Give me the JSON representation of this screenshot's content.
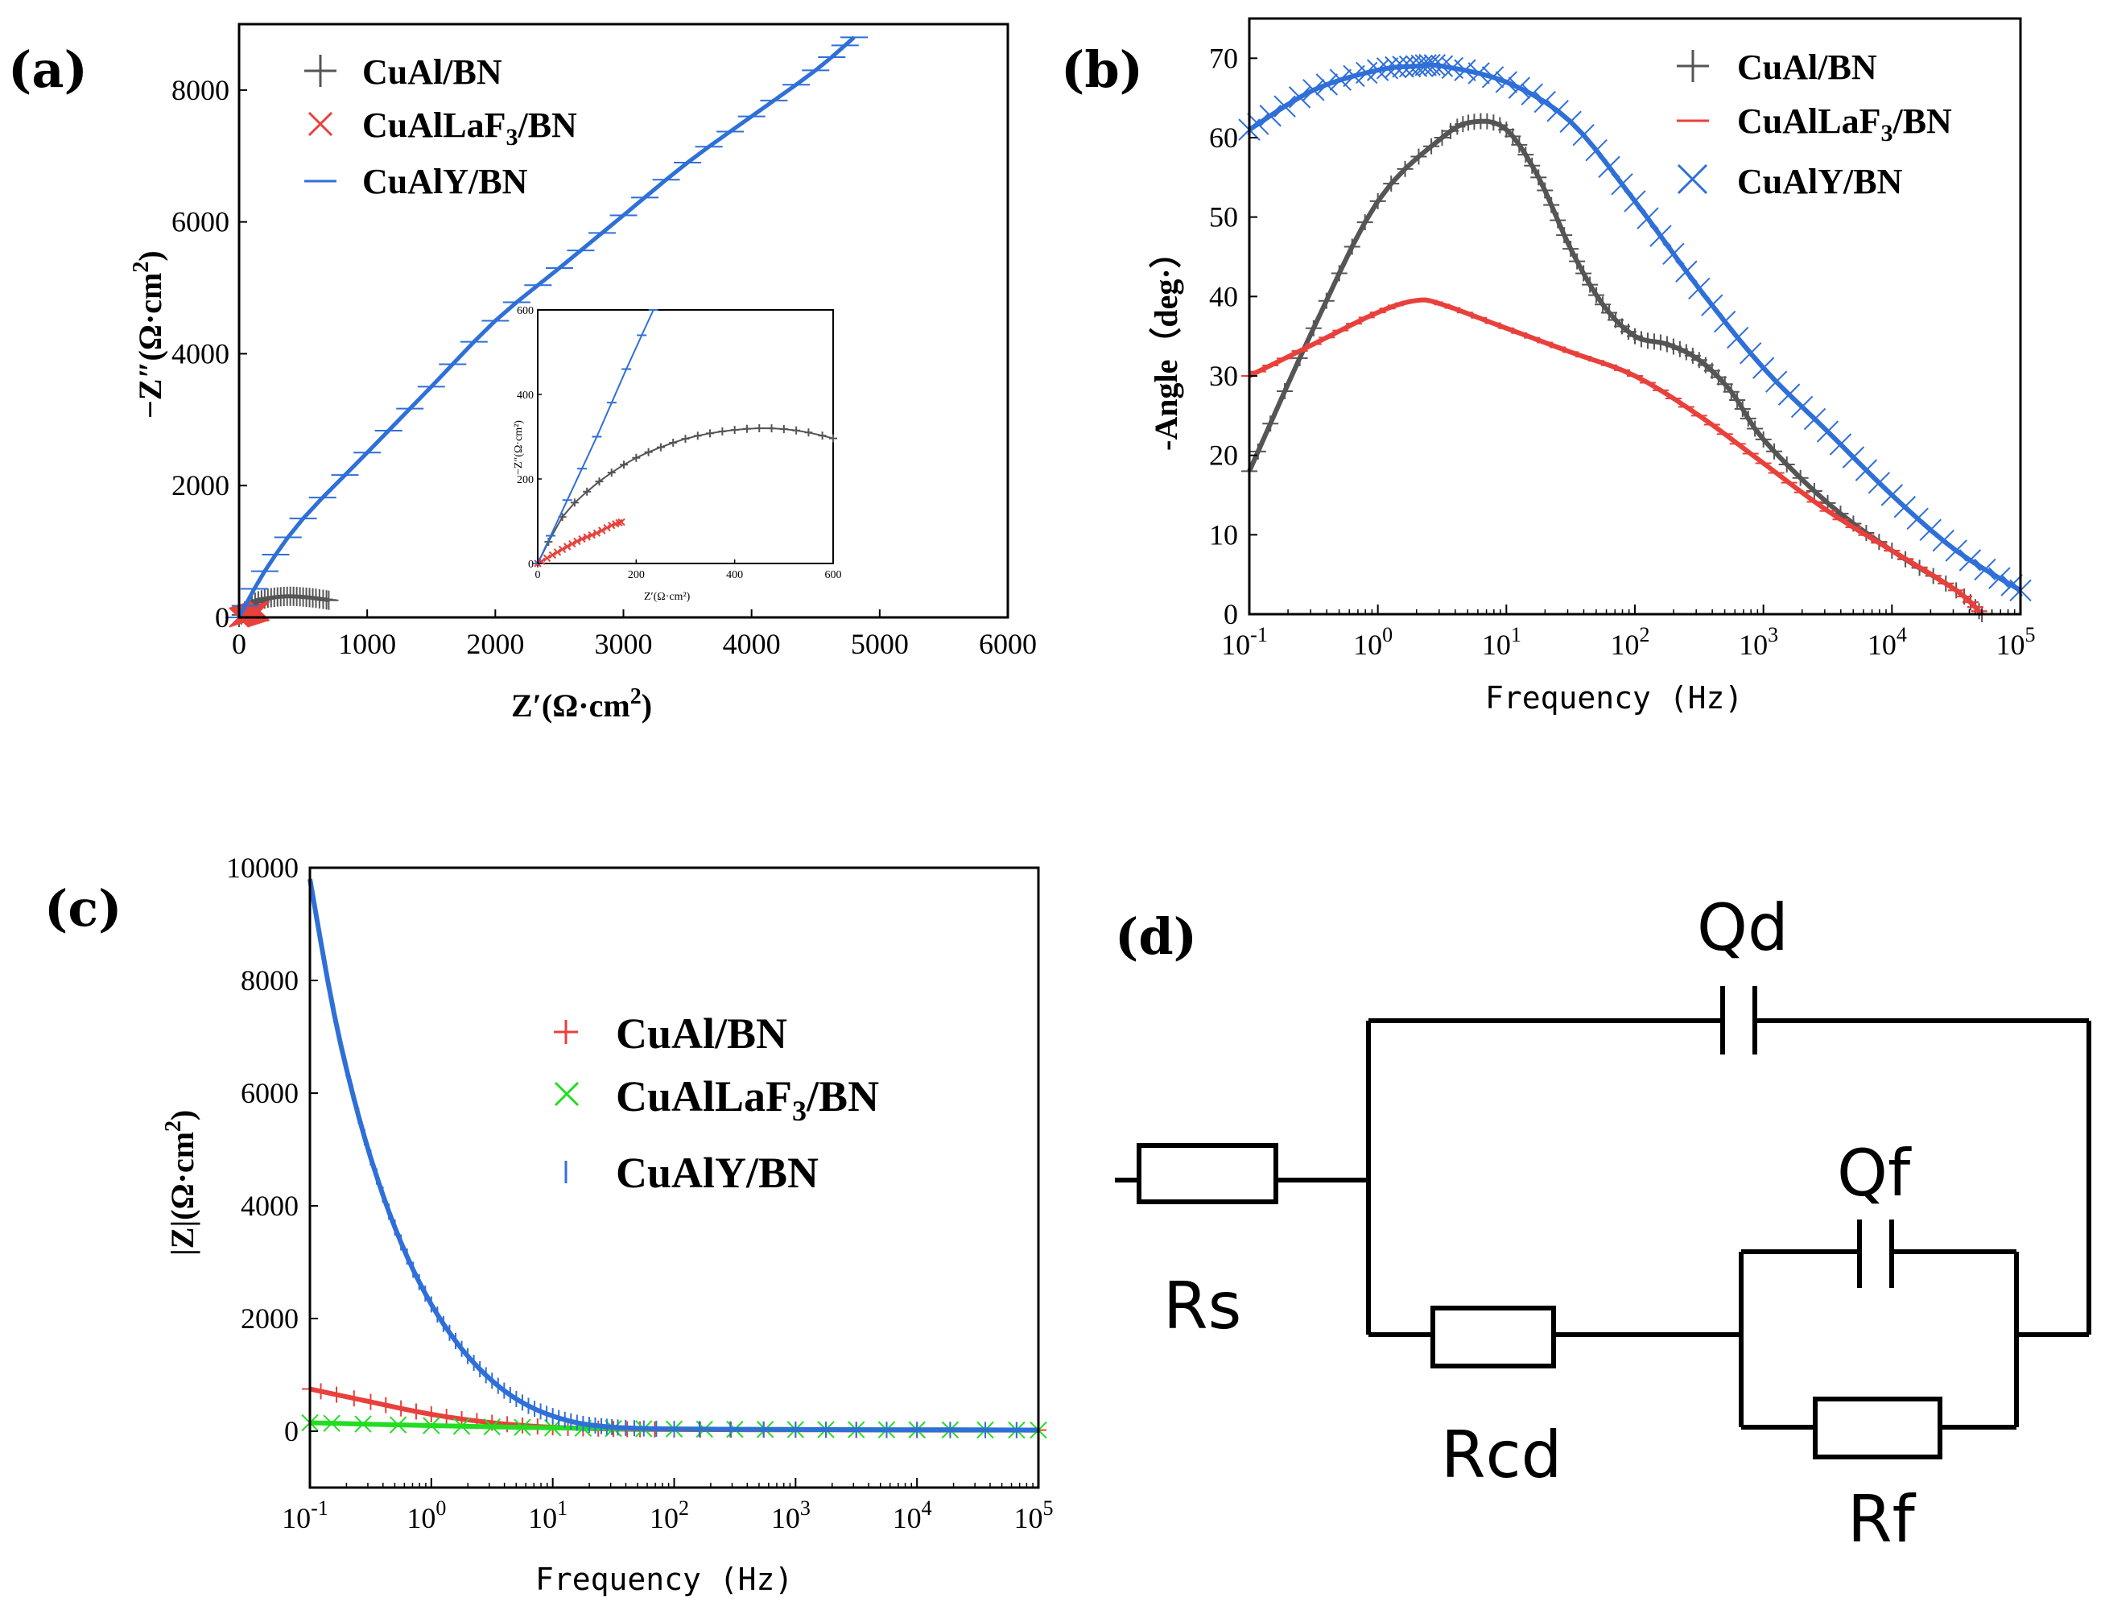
{
  "chart_data": [
    {
      "panel": "(a)",
      "type": "scatter",
      "title": "",
      "xlabel": "Z′(Ω·cm²)",
      "ylabel": "−Z″(Ω·cm²)",
      "xlim": [
        0,
        6000
      ],
      "ylim": [
        0,
        9000
      ],
      "xticks": [
        "0",
        "1000",
        "2000",
        "3000",
        "4000",
        "5000",
        "6000"
      ],
      "yticks": [
        "0",
        "2000",
        "4000",
        "6000",
        "8000"
      ],
      "legend": [
        "CuAl/BN",
        "CuAlLaF3/BN",
        "CuAlY/BN"
      ],
      "series": [
        {
          "name": "CuAl/BN",
          "color": "#555555",
          "marker": "+",
          "x": [
            0,
            100,
            200,
            300,
            400,
            500,
            600,
            700
          ],
          "y": [
            0,
            200,
            280,
            310,
            320,
            310,
            290,
            260
          ]
        },
        {
          "name": "CuAlLaF3/BN",
          "color": "#e8413c",
          "marker": "x",
          "x": [
            0,
            40,
            80,
            120,
            160
          ],
          "y": [
            0,
            25,
            50,
            75,
            95
          ]
        },
        {
          "name": "CuAlY/BN",
          "color": "#2f6fd8",
          "marker": "_",
          "x": [
            0,
            200,
            500,
            1000,
            1500,
            2000,
            2500,
            3000,
            3500,
            4000,
            4500,
            4800
          ],
          "y": [
            0,
            700,
            1500,
            2500,
            3500,
            4500,
            5300,
            6100,
            6900,
            7600,
            8300,
            8800
          ]
        }
      ],
      "inset": {
        "xticks": [
          "0",
          "200",
          "400",
          "600"
        ],
        "yticks": [
          "0",
          "200",
          "400",
          "600"
        ],
        "xlim": [
          0,
          600
        ],
        "ylim": [
          0,
          600
        ],
        "xlabel": "Z′(Ω·cm²)",
        "ylabel": "−Z″(Ω·cm²)"
      }
    },
    {
      "panel": "(b)",
      "type": "line",
      "title": "",
      "xlabel": "Frequency (Hz)",
      "ylabel": "-Angle (deg·)",
      "xscale": "log",
      "xlim_log": [
        -1,
        5
      ],
      "ylim": [
        0,
        75
      ],
      "xticks_exp": [
        "-1",
        "0",
        "1",
        "2",
        "3",
        "4",
        "5"
      ],
      "yticks": [
        "0",
        "10",
        "20",
        "30",
        "40",
        "50",
        "60",
        "70"
      ],
      "legend": [
        "CuAl/BN",
        "CuAlLaF3/BN",
        "CuAlY/BN"
      ],
      "series": [
        {
          "name": "CuAl/BN",
          "color": "#555555",
          "marker": "+",
          "logx": [
            -1,
            -0.5,
            0,
            0.5,
            0.75,
            1,
            1.25,
            1.5,
            1.75,
            2,
            2.25,
            2.5,
            2.75,
            3,
            3.5,
            4,
            4.5,
            4.7
          ],
          "y": [
            18,
            36,
            52,
            60,
            62,
            61,
            55,
            46,
            39,
            35,
            34,
            32,
            28,
            22,
            14,
            8,
            3,
            0
          ]
        },
        {
          "name": "CuAlLaF3/BN",
          "color": "#e8413c",
          "marker": "_",
          "logx": [
            -1,
            -0.5,
            0,
            0.3,
            0.5,
            1,
            1.5,
            2,
            2.5,
            3,
            3.5,
            4,
            4.5,
            4.7
          ],
          "y": [
            30,
            34,
            38,
            39.5,
            39,
            36,
            33,
            30,
            25,
            19,
            13,
            8,
            3,
            0
          ]
        },
        {
          "name": "CuAlY/BN",
          "color": "#2f6fd8",
          "marker": "x",
          "logx": [
            -1,
            -0.5,
            0,
            0.3,
            0.5,
            1,
            1.5,
            2,
            2.5,
            3,
            3.5,
            4,
            4.5,
            5
          ],
          "y": [
            61,
            66,
            68.5,
            69,
            69,
            67,
            62,
            52,
            41,
            31,
            23,
            15,
            8,
            3
          ]
        }
      ]
    },
    {
      "panel": "(c)",
      "type": "line",
      "title": "",
      "xlabel": "Frequency (Hz)",
      "ylabel": "|Z|(Ω·cm²)",
      "xscale": "log",
      "xlim_log": [
        -1,
        5
      ],
      "ylim": [
        -1000,
        10000
      ],
      "xticks_exp": [
        "-1",
        "0",
        "1",
        "2",
        "3",
        "4",
        "5"
      ],
      "yticks": [
        "0",
        "2000",
        "4000",
        "6000",
        "8000",
        "10000"
      ],
      "legend": [
        "CuAl/BN",
        "CuAlLaF3/BN",
        "CuAlY/BN"
      ],
      "series": [
        {
          "name": "CuAl/BN",
          "color": "#e8413c",
          "marker": "+",
          "logx": [
            -1,
            -0.5,
            0,
            0.5,
            1,
            1.5,
            2,
            3,
            4,
            5
          ],
          "y": [
            750,
            520,
            300,
            150,
            70,
            40,
            30,
            25,
            20,
            20
          ]
        },
        {
          "name": "CuAlLaF3/BN",
          "color": "#22dd22",
          "marker": "x",
          "logx": [
            -1,
            0,
            1,
            2,
            3,
            4,
            5
          ],
          "y": [
            150,
            100,
            60,
            40,
            30,
            25,
            20
          ]
        },
        {
          "name": "CuAlY/BN",
          "color": "#2f6fd8",
          "marker": "|",
          "logx": [
            -1,
            -0.8,
            -0.6,
            -0.4,
            -0.2,
            0,
            0.2,
            0.4,
            0.6,
            0.8,
            1,
            1.2,
            1.4,
            1.6,
            2,
            3,
            4,
            5
          ],
          "y": [
            9800,
            7400,
            5600,
            4200,
            3100,
            2250,
            1600,
            1100,
            720,
            450,
            270,
            150,
            90,
            60,
            40,
            30,
            25,
            20
          ]
        }
      ]
    }
  ],
  "panels": {
    "a_label": "(a)",
    "b_label": "(b)",
    "c_label": "(c)",
    "d_label": "(d)"
  },
  "legend_a": {
    "l1": "CuAl/BN",
    "l2a": "CuAlLaF",
    "l2sub": "3",
    "l2b": "/BN",
    "l3": "CuAlY/BN"
  },
  "legend_b": {
    "l1": "CuAl/BN",
    "l2a": "CuAlLaF",
    "l2sub": "3",
    "l2b": "/BN",
    "l3": "CuAlY/BN"
  },
  "legend_c": {
    "l1": "CuAl/BN",
    "l2a": "CuAlLaF",
    "l2sub": "3",
    "l2b": "/BN",
    "l3": "CuAlY/BN"
  },
  "axis_a": {
    "xlabel_main": "Z′(Ω·cm",
    "xlabel_sup": "2",
    "xlabel_end": ")",
    "ylabel_main": "−Z″(Ω·cm",
    "ylabel_sup": "2",
    "ylabel_end": ")"
  },
  "axis_b": {
    "xlabel": "Frequency (Hz)",
    "ylabel": "-Angle（deg·）"
  },
  "axis_c": {
    "xlabel": "Frequency (Hz)",
    "ylabel_main": "|Z|(Ω·cm",
    "ylabel_sup": "2",
    "ylabel_end": ")"
  },
  "inset_a": {
    "xlabel": "Z′(Ω·cm²)",
    "ylabel": "−Z″(Ω·cm²)"
  },
  "circuit": {
    "Qd": "Qd",
    "Qf": "Qf",
    "Rs": "Rs",
    "Rcd": "Rcd",
    "Rf": "Rf"
  },
  "colors": {
    "gray": "#555555",
    "red": "#e8413c",
    "blue": "#2f6fd8",
    "green": "#22dd22"
  }
}
